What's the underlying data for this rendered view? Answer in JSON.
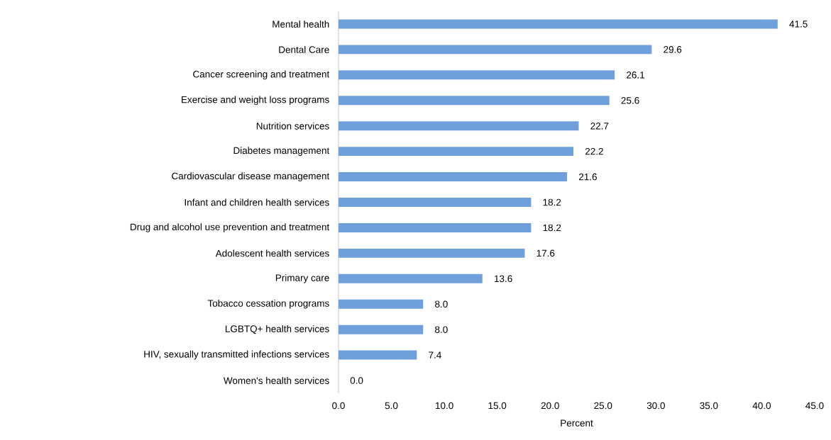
{
  "chart_data": {
    "type": "bar",
    "orientation": "horizontal",
    "xlabel": "Percent",
    "categories": [
      "Mental health",
      "Dental Care",
      "Cancer screening and treatment",
      "Exercise and weight loss programs",
      "Nutrition services",
      "Diabetes management",
      "Cardiovascular disease management",
      "Infant and children health services",
      "Drug and alcohol use prevention and treatment",
      "Adolescent health services",
      "Primary care",
      "Tobacco cessation programs",
      "LGBTQ+ health services",
      "HIV, sexually transmitted infections services",
      "Women's health services"
    ],
    "values": [
      41.5,
      29.6,
      26.1,
      25.6,
      22.7,
      22.2,
      21.6,
      18.2,
      18.2,
      17.6,
      13.6,
      8.0,
      8.0,
      7.4,
      0.0
    ],
    "value_labels": [
      "41.5",
      "29.6",
      "26.1",
      "25.6",
      "22.7",
      "22.2",
      "21.6",
      "18.2",
      "18.2",
      "17.6",
      "13.6",
      "8.0",
      "8.0",
      "7.4",
      "0.0"
    ],
    "color": "#6fa0dc",
    "xlim": [
      0,
      45
    ],
    "xticks": [
      {
        "value": 0,
        "label": "0.0"
      },
      {
        "value": 5,
        "label": "5.0"
      },
      {
        "value": 10,
        "label": "10.0"
      },
      {
        "value": 15,
        "label": "15.0"
      },
      {
        "value": 20,
        "label": "20.0"
      },
      {
        "value": 25,
        "label": "25.0"
      },
      {
        "value": 30,
        "label": "30.0"
      },
      {
        "value": 35,
        "label": "35.0"
      },
      {
        "value": 40,
        "label": "40.0"
      },
      {
        "value": 45,
        "label": "45.0"
      }
    ],
    "grid": false
  }
}
